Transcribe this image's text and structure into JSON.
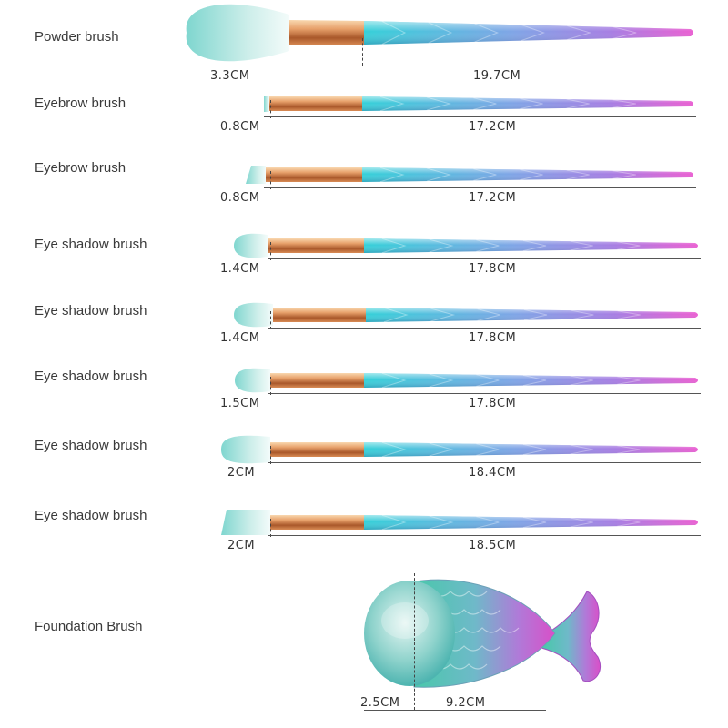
{
  "brushes": [
    {
      "label": "Powder brush",
      "head": "3.3CM",
      "handle": "19.7CM"
    },
    {
      "label": "Eyebrow brush",
      "head": "0.8CM",
      "handle": "17.2CM"
    },
    {
      "label": "Eyebrow brush",
      "head": "0.8CM",
      "handle": "17.2CM"
    },
    {
      "label": "Eye shadow brush",
      "head": "1.4CM",
      "handle": "17.8CM"
    },
    {
      "label": "Eye shadow brush",
      "head": "1.4CM",
      "handle": "17.8CM"
    },
    {
      "label": "Eye shadow brush",
      "head": "1.5CM",
      "handle": "17.8CM"
    },
    {
      "label": "Eye shadow brush",
      "head": "2CM",
      "handle": "18.4CM"
    },
    {
      "label": "Eye shadow brush",
      "head": "2CM",
      "handle": "18.5CM"
    }
  ],
  "foundation": {
    "label": "Foundation Brush",
    "head": "2.5CM",
    "handle": "9.2CM"
  },
  "colors": {
    "bristle_tip": "#e8f7f5",
    "bristle_base": "#7fd6cf",
    "ferrule_light": "#f6c79a",
    "ferrule_dark": "#a9582a",
    "handle_start": "#35d0d8",
    "handle_mid": "#8a7fe0",
    "handle_end": "#e266d6"
  }
}
